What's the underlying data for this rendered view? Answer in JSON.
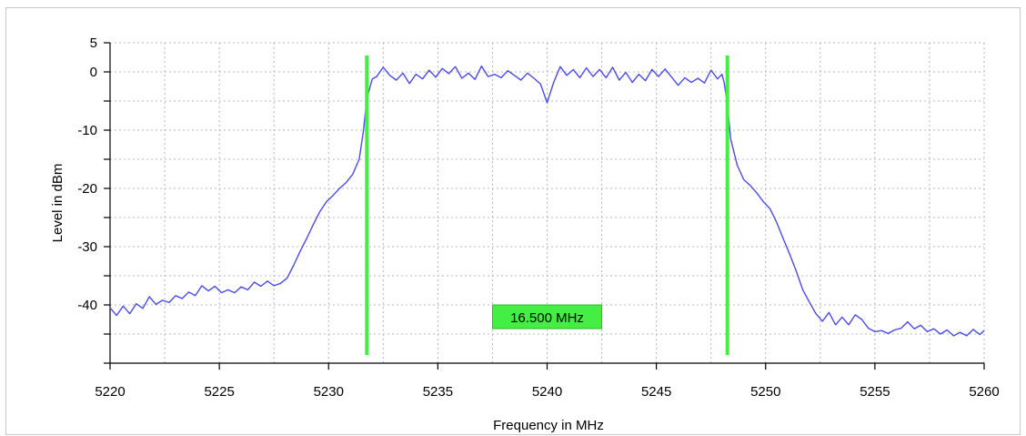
{
  "chart_data": {
    "type": "line",
    "title": "",
    "xlabel": "Frequency in MHz",
    "ylabel": "Level in dBm",
    "xlim": [
      5220,
      5260
    ],
    "ylim": [
      -50,
      5
    ],
    "x_ticks": [
      5220,
      5225,
      5230,
      5235,
      5240,
      5245,
      5250,
      5255,
      5260
    ],
    "y_ticks": [
      5,
      0,
      -10,
      -20,
      -30,
      -40
    ],
    "grid": true,
    "line_color": "#4a4af0",
    "marker_color": "#44ee44",
    "markers": [
      {
        "x": 5231.75
      },
      {
        "x": 5248.25
      }
    ],
    "bandwidth_label": "16.500 MHz",
    "series": [
      {
        "points": [
          [
            5220.0,
            -40.5
          ],
          [
            5220.3,
            -41.8
          ],
          [
            5220.6,
            -40.2
          ],
          [
            5220.9,
            -41.5
          ],
          [
            5221.2,
            -39.8
          ],
          [
            5221.5,
            -40.6
          ],
          [
            5221.8,
            -38.6
          ],
          [
            5222.1,
            -39.9
          ],
          [
            5222.4,
            -39.2
          ],
          [
            5222.7,
            -39.6
          ],
          [
            5223.0,
            -38.4
          ],
          [
            5223.3,
            -38.9
          ],
          [
            5223.6,
            -37.8
          ],
          [
            5223.9,
            -38.4
          ],
          [
            5224.2,
            -36.7
          ],
          [
            5224.5,
            -37.6
          ],
          [
            5224.8,
            -36.8
          ],
          [
            5225.1,
            -37.9
          ],
          [
            5225.4,
            -37.4
          ],
          [
            5225.7,
            -37.9
          ],
          [
            5226.0,
            -36.9
          ],
          [
            5226.3,
            -37.4
          ],
          [
            5226.6,
            -36.1
          ],
          [
            5226.9,
            -36.8
          ],
          [
            5227.2,
            -35.9
          ],
          [
            5227.5,
            -36.7
          ],
          [
            5227.8,
            -36.3
          ],
          [
            5228.1,
            -35.4
          ],
          [
            5228.4,
            -33.2
          ],
          [
            5228.7,
            -30.8
          ],
          [
            5229.0,
            -28.6
          ],
          [
            5229.3,
            -26.2
          ],
          [
            5229.6,
            -24.0
          ],
          [
            5229.9,
            -22.3
          ],
          [
            5230.2,
            -21.2
          ],
          [
            5230.5,
            -20.0
          ],
          [
            5230.8,
            -19.0
          ],
          [
            5231.1,
            -17.6
          ],
          [
            5231.4,
            -15.0
          ],
          [
            5231.6,
            -10.0
          ],
          [
            5231.75,
            -4.5
          ],
          [
            5232.0,
            -1.2
          ],
          [
            5232.2,
            -0.8
          ],
          [
            5232.5,
            0.8
          ],
          [
            5232.8,
            -0.6
          ],
          [
            5233.1,
            -1.4
          ],
          [
            5233.4,
            -0.2
          ],
          [
            5233.7,
            -2.0
          ],
          [
            5234.0,
            -0.4
          ],
          [
            5234.3,
            -1.2
          ],
          [
            5234.6,
            0.3
          ],
          [
            5234.9,
            -0.9
          ],
          [
            5235.2,
            0.6
          ],
          [
            5235.5,
            -0.3
          ],
          [
            5235.8,
            0.9
          ],
          [
            5236.1,
            -1.1
          ],
          [
            5236.4,
            -0.2
          ],
          [
            5236.7,
            -1.3
          ],
          [
            5237.0,
            1.0
          ],
          [
            5237.3,
            -0.8
          ],
          [
            5237.6,
            -0.4
          ],
          [
            5237.9,
            -1.0
          ],
          [
            5238.2,
            0.2
          ],
          [
            5238.5,
            -0.6
          ],
          [
            5238.8,
            -1.4
          ],
          [
            5239.1,
            -0.2
          ],
          [
            5239.4,
            -1.1
          ],
          [
            5239.7,
            -2.1
          ],
          [
            5240.0,
            -5.3
          ],
          [
            5240.3,
            -1.8
          ],
          [
            5240.6,
            0.9
          ],
          [
            5240.9,
            -0.6
          ],
          [
            5241.2,
            0.4
          ],
          [
            5241.5,
            -1.0
          ],
          [
            5241.8,
            0.7
          ],
          [
            5242.1,
            -0.8
          ],
          [
            5242.4,
            0.4
          ],
          [
            5242.7,
            -1.0
          ],
          [
            5243.0,
            0.8
          ],
          [
            5243.3,
            -1.4
          ],
          [
            5243.6,
            -0.1
          ],
          [
            5243.9,
            -1.8
          ],
          [
            5244.2,
            -0.4
          ],
          [
            5244.5,
            -1.5
          ],
          [
            5244.8,
            0.4
          ],
          [
            5245.1,
            -0.8
          ],
          [
            5245.4,
            0.5
          ],
          [
            5245.7,
            -0.9
          ],
          [
            5246.0,
            -2.3
          ],
          [
            5246.3,
            -1.0
          ],
          [
            5246.6,
            -1.8
          ],
          [
            5246.9,
            -1.1
          ],
          [
            5247.2,
            -1.9
          ],
          [
            5247.5,
            0.3
          ],
          [
            5247.8,
            -1.2
          ],
          [
            5248.0,
            -0.4
          ],
          [
            5248.1,
            -1.8
          ],
          [
            5248.25,
            -5.5
          ],
          [
            5248.4,
            -11.5
          ],
          [
            5248.7,
            -16.0
          ],
          [
            5249.0,
            -18.5
          ],
          [
            5249.3,
            -19.5
          ],
          [
            5249.6,
            -20.8
          ],
          [
            5249.9,
            -22.3
          ],
          [
            5250.2,
            -23.5
          ],
          [
            5250.5,
            -25.8
          ],
          [
            5250.8,
            -28.6
          ],
          [
            5251.1,
            -31.3
          ],
          [
            5251.4,
            -34.2
          ],
          [
            5251.7,
            -37.4
          ],
          [
            5252.0,
            -39.5
          ],
          [
            5252.3,
            -41.5
          ],
          [
            5252.6,
            -42.8
          ],
          [
            5252.9,
            -41.3
          ],
          [
            5253.2,
            -43.4
          ],
          [
            5253.5,
            -42.1
          ],
          [
            5253.8,
            -43.4
          ],
          [
            5254.1,
            -41.7
          ],
          [
            5254.4,
            -42.5
          ],
          [
            5254.7,
            -44.0
          ],
          [
            5255.0,
            -44.6
          ],
          [
            5255.3,
            -44.4
          ],
          [
            5255.6,
            -44.9
          ],
          [
            5255.9,
            -44.3
          ],
          [
            5256.2,
            -44.0
          ],
          [
            5256.5,
            -42.9
          ],
          [
            5256.8,
            -44.1
          ],
          [
            5257.1,
            -43.5
          ],
          [
            5257.4,
            -44.6
          ],
          [
            5257.7,
            -44.1
          ],
          [
            5258.0,
            -45.0
          ],
          [
            5258.3,
            -44.3
          ],
          [
            5258.6,
            -45.3
          ],
          [
            5258.9,
            -44.7
          ],
          [
            5259.2,
            -45.3
          ],
          [
            5259.5,
            -44.2
          ],
          [
            5259.8,
            -45.1
          ],
          [
            5260.0,
            -44.4
          ]
        ]
      }
    ]
  }
}
